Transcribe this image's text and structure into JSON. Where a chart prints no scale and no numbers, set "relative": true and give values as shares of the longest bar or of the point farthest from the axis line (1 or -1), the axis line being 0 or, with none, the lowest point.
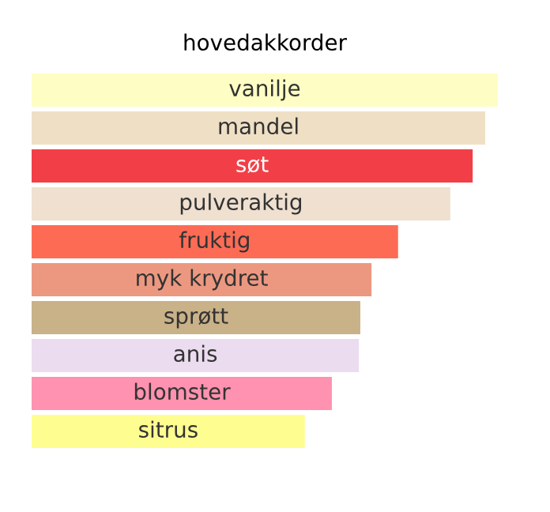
{
  "chart_data": {
    "type": "bar",
    "orientation": "horizontal",
    "relative": true,
    "title": "hovedakkorder",
    "categories": [
      "vanilje",
      "mandel",
      "søt",
      "pulveraktig",
      "fruktig",
      "myk krydret",
      "sprøtt",
      "anis",
      "blomster",
      "sitrus"
    ],
    "values": [
      1,
      0.973,
      0.946,
      0.898,
      0.786,
      0.729,
      0.705,
      0.702,
      0.644,
      0.586
    ],
    "colors": [
      "#fefec4",
      "#efe0c5",
      "#f23f47",
      "#efe0d0",
      "#fe6b55",
      "#ec9880",
      "#c9b188",
      "#ecdcf0",
      "#fe92b0",
      "#fefe90"
    ]
  }
}
